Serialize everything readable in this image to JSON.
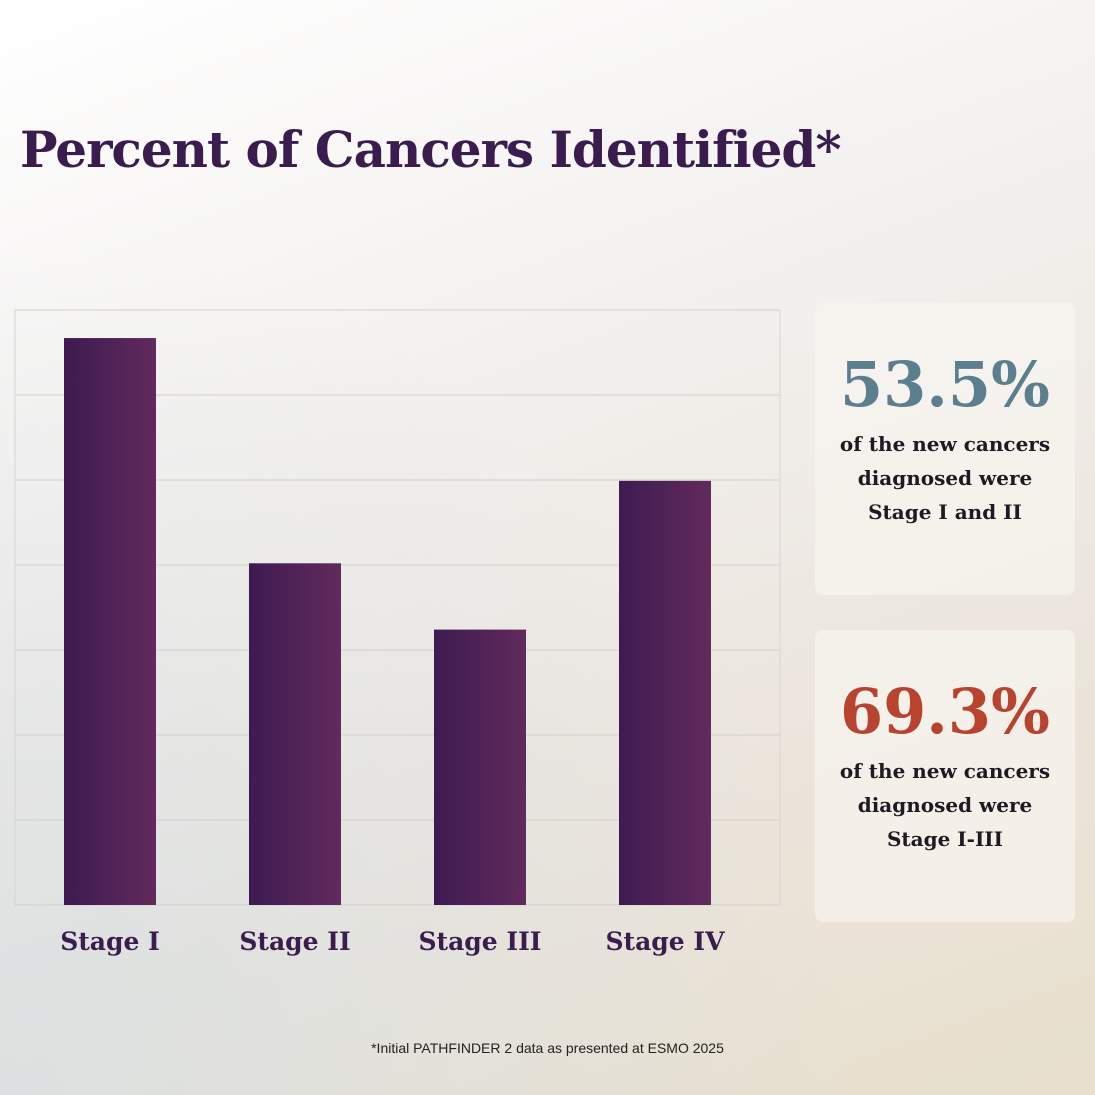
{
  "chart_data": {
    "type": "bar",
    "title": "Percent of Cancers Identified*",
    "categories": [
      "Stage I",
      "Stage II",
      "Stage III",
      "Stage IV"
    ],
    "values": [
      6.67,
      4.02,
      3.24,
      4.99
    ],
    "ylim": [
      0,
      7
    ],
    "grid": true,
    "bar_color": [
      "#3d1b52",
      "#622a5c"
    ]
  },
  "callouts": [
    {
      "value": "53.5%",
      "color": "#5b7f8e",
      "lines": [
        "of the new cancers",
        "diagnosed were",
        "Stage I and II"
      ]
    },
    {
      "value": "69.3%",
      "color": "#b8432f",
      "lines": [
        "of the new cancers",
        "diagnosed were",
        "Stage I-III"
      ]
    }
  ],
  "footnote": "*Initial PATHFINDER 2 data as presented at ESMO 2025"
}
